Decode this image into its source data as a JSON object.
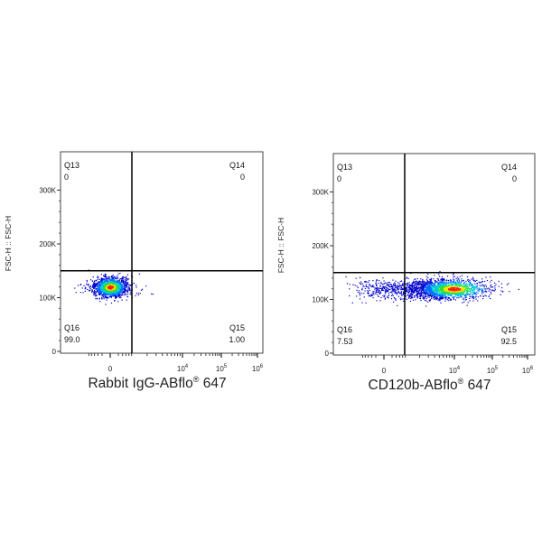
{
  "chart_data": [
    {
      "type": "scatter",
      "subtype": "flow-cytometry-density-dot-plot",
      "xlabel_main": "Rabbit IgG-ABflo",
      "xlabel_sup": "®",
      "xlabel_end": " 647",
      "ylabel": "FSC-H :: FSC-H",
      "y_ticks": [
        "0",
        "100K",
        "200K",
        "300K"
      ],
      "x_ticks": [
        "0",
        "10",
        "10",
        "10"
      ],
      "x_tick_exps": [
        "",
        "4",
        "5",
        "6"
      ],
      "gate": {
        "y": 150000
      },
      "quadrants": {
        "Q13": {
          "name": "Q13",
          "value": "0"
        },
        "Q14": {
          "name": "Q14",
          "value": "0"
        },
        "Q15": {
          "name": "Q15",
          "value": "1.00"
        },
        "Q16": {
          "name": "Q16",
          "value": "99.0"
        }
      },
      "population": {
        "fsc_center": 120000,
        "x_center": "0"
      },
      "colors": [
        "#0000cc",
        "#0070ff",
        "#00d0d0",
        "#30e030",
        "#ffe000",
        "#ff2000"
      ]
    },
    {
      "type": "scatter",
      "subtype": "flow-cytometry-density-dot-plot",
      "xlabel_main": "CD120b-ABflo",
      "xlabel_sup": "®",
      "xlabel_end": " 647",
      "ylabel": "FSC-H :: FSC-H",
      "y_ticks": [
        "0",
        "100K",
        "200K",
        "300K"
      ],
      "x_ticks": [
        "0",
        "10",
        "10",
        "10"
      ],
      "x_tick_exps": [
        "",
        "4",
        "5",
        "6"
      ],
      "gate": {
        "y": 150000
      },
      "quadrants": {
        "Q13": {
          "name": "Q13",
          "value": "0"
        },
        "Q14": {
          "name": "Q14",
          "value": "0"
        },
        "Q15": {
          "name": "Q15",
          "value": "92.5"
        },
        "Q16": {
          "name": "Q16",
          "value": "7.53"
        }
      },
      "population": {
        "fsc_center": 120000,
        "x_center": "10^4"
      },
      "colors": [
        "#0000cc",
        "#0070ff",
        "#00d0d0",
        "#30e030",
        "#ffe000",
        "#ff2000"
      ]
    }
  ]
}
